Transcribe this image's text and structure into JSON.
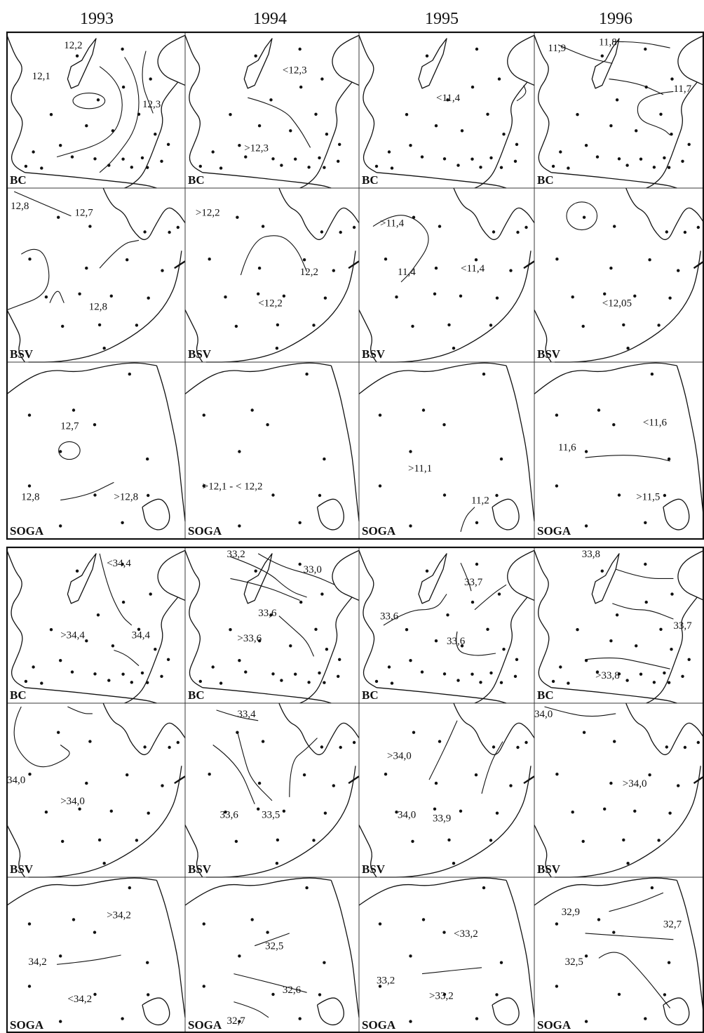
{
  "years": [
    "1993",
    "1994",
    "1995",
    "1996"
  ],
  "regions": [
    "BC",
    "BSV",
    "SOGA"
  ],
  "temperature_block": {
    "BC": [
      [
        "12,2",
        "12,1",
        "12,3"
      ],
      [
        "<12,3",
        ">12,3"
      ],
      [
        "<11,4"
      ],
      [
        "11,9",
        "11,8",
        "11,7"
      ]
    ],
    "BSV": [
      [
        "12,8",
        "12,7",
        "12,8"
      ],
      [
        ">12,2",
        "12,2",
        "<12,2"
      ],
      [
        ">11,4",
        "11,4",
        "<11,4"
      ],
      [
        "<12,05"
      ]
    ],
    "SOGA": [
      [
        "12,7",
        "12,8",
        ">12,8"
      ],
      [
        ">12,1 - < 12,2"
      ],
      [
        ">11,1",
        "11,2"
      ],
      [
        "<11,6",
        "11,6",
        ">11,5"
      ]
    ]
  },
  "salinity_block": {
    "BC": [
      [
        "<34,4",
        "34,4",
        ">34,4"
      ],
      [
        "33,2",
        "33,0",
        "33,6",
        ">33,6"
      ],
      [
        "33,7",
        "33,6",
        "33,6"
      ],
      [
        "33,8",
        "33,7",
        ">33,8"
      ]
    ],
    "BSV": [
      [
        "34,0",
        ">34,0"
      ],
      [
        "33,4",
        "33,6",
        "33,5"
      ],
      [
        ">34,0",
        "34,0",
        "33,9"
      ],
      [
        "34,0",
        ">34,0"
      ]
    ],
    "SOGA": [
      [
        ">34,2",
        "34,2",
        "<34,2"
      ],
      [
        "32,5",
        "32,6",
        "32,7"
      ],
      [
        "<33,2",
        "33,2",
        ">33,2"
      ],
      [
        "32,9",
        "32,7",
        "32,5"
      ]
    ]
  },
  "colors": {
    "ink": "#111111",
    "background": "#ffffff"
  }
}
